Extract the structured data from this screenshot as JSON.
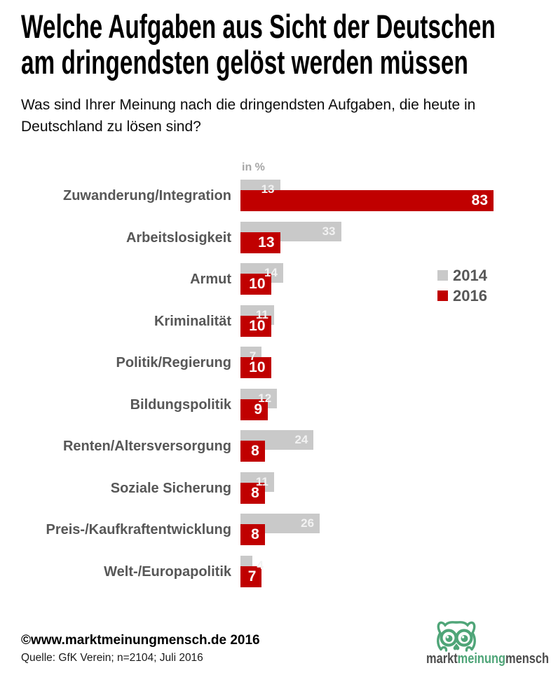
{
  "title": {
    "line1": "Welche Aufgaben aus Sicht der Deutschen",
    "line2": "am dringendsten gelöst werden müssen"
  },
  "subtitle": {
    "line1": "Was sind Ihrer Meinung nach die dringendsten Aufgaben, die heute in",
    "line2": "Deutschland zu lösen sind?"
  },
  "chart_data": {
    "type": "bar",
    "orientation": "horizontal",
    "unit_label": "in %",
    "title": "Welche Aufgaben aus Sicht der Deutschen am dringendsten gelöst werden müssen",
    "categories": [
      "Zuwanderung/Integration",
      "Arbeitslosigkeit",
      "Armut",
      "Kriminalität",
      "Politik/Regierung",
      "Bildungspolitik",
      "Renten/Altersversorgung",
      "Soziale Sicherung",
      "Preis-/Kaufkraftentwicklung",
      "Welt-/Europapolitik"
    ],
    "series": [
      {
        "name": "2014",
        "color": "#c9c9c9",
        "values": [
          13,
          33,
          14,
          11,
          7,
          12,
          24,
          11,
          26,
          4
        ]
      },
      {
        "name": "2016",
        "color": "#c00000",
        "values": [
          83,
          13,
          10,
          10,
          10,
          9,
          8,
          8,
          8,
          7
        ]
      }
    ],
    "xlim": [
      0,
      83
    ],
    "value_labels": "inside-end",
    "legend_position": "right",
    "grid": false
  },
  "legend": {
    "items": [
      {
        "label": "2014",
        "color": "#c9c9c9"
      },
      {
        "label": "2016",
        "color": "#c00000"
      }
    ]
  },
  "footer": {
    "copyright": "©www.marktmeinungmensch.de 2016",
    "source": "Quelle: GfK Verein; n=2104; Juli 2016"
  },
  "logo": {
    "part1": "markt",
    "part2": "meinung",
    "part3": "mensch",
    "owl_color": "#4fa578"
  }
}
